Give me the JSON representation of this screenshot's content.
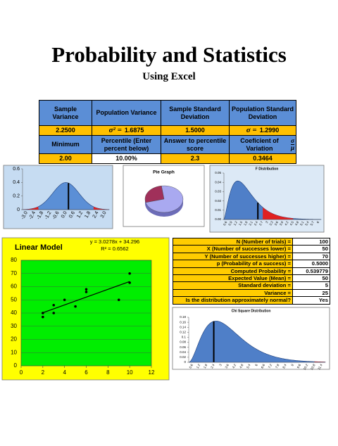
{
  "header": {
    "title": "Probability and Statistics",
    "subtitle": "Using Excel"
  },
  "summary_table": {
    "rows": [
      [
        "Sample Variance",
        "Population Variance",
        "Sample Standard Deviation",
        "Population Standard Deviation"
      ],
      [
        "2.2500",
        {
          "prefix": "σ² =",
          "value": "1.6875"
        },
        "1.5000",
        {
          "prefix": "σ =",
          "value": "1.2990"
        }
      ],
      [
        "Minimum",
        "Percentile (Enter percent below)",
        "Answer to percentile score",
        {
          "text": "Coeficient of Variation",
          "numerator": "σ",
          "denominator": "μ"
        }
      ],
      [
        "2.00",
        "10.00%",
        "2.3",
        "0.3464"
      ]
    ]
  },
  "stats_table": {
    "rows": [
      [
        "N (Number of trials) =",
        "100"
      ],
      [
        "X (Number of successes lower) =",
        "50"
      ],
      [
        "Y (Number of successes higher) =",
        "70"
      ],
      [
        "p (Probability of a success) =",
        "0.5000"
      ],
      [
        "Computed Probability =",
        "0.539779"
      ],
      [
        "Expected Value (Mean) =",
        "50"
      ],
      [
        "Standard deviation =",
        "5"
      ],
      [
        "Variance =",
        "25"
      ],
      [
        "Is the distribution approximately normal?",
        "Yes"
      ]
    ]
  },
  "chart_data": [
    {
      "type": "density",
      "distribution": "normal",
      "categories": [
        "-3.0",
        "-2.4",
        "-1.8",
        "-1.2",
        "-0.6",
        "0.0",
        "0.6",
        "1.2",
        "1.8",
        "2.4",
        "3.0"
      ],
      "ylim": [
        0,
        0.6
      ],
      "yticks": [
        0,
        0.2,
        0.4,
        0.6
      ],
      "color": "#5b8fd6"
    },
    {
      "type": "pie",
      "title": "Pie Graph",
      "values": [
        27,
        73
      ],
      "colors": [
        "#a0305a",
        "#a9a9f0"
      ]
    },
    {
      "type": "density",
      "distribution": "f",
      "title": "F Distribution",
      "categories": [
        "0.6",
        "0.9",
        "1.2",
        "1.5",
        "1.8",
        "2.1",
        "2.4",
        "2.7",
        "3",
        "3.3",
        "3.6",
        "3.9",
        "4.2",
        "4.5",
        "4.8",
        "5.1",
        "5.4",
        "5.7",
        "6"
      ],
      "ylim": [
        0,
        0.05
      ],
      "yticks": [
        {
          "value": 0,
          "label": "0.00"
        },
        0.01,
        0.02,
        0.03,
        0.04,
        0.05
      ],
      "color": "#4f7fc8"
    },
    {
      "type": "scatter",
      "title": "Linear Model",
      "annotations": [
        "y = 3.0278x + 34.296",
        "R² = 0.6562"
      ],
      "x": [
        2,
        2,
        3,
        3,
        4,
        5,
        6,
        6,
        9,
        10,
        10
      ],
      "values": [
        37,
        40,
        46,
        40,
        50,
        45,
        56,
        58,
        50,
        63,
        70
      ],
      "xlim": [
        0,
        12
      ],
      "ylim": [
        0,
        80
      ],
      "xticks": [
        0,
        2,
        4,
        6,
        8,
        10,
        12
      ],
      "yticks": [
        0,
        10,
        20,
        30,
        40,
        50,
        60,
        70,
        80
      ],
      "color": "#000000"
    },
    {
      "type": "density",
      "distribution": "chi-square",
      "title": "Chi Square Distribution",
      "categories": [
        "0.6",
        "1.2",
        "1.8",
        "2.4",
        "3",
        "3.6",
        "4.2",
        "4.8",
        "5.4",
        "6",
        "6.6",
        "7.2",
        "7.8",
        "8.4",
        "9",
        "9.6",
        "10.2",
        "10.8",
        "11.4"
      ],
      "ylim": [
        0,
        0.18
      ],
      "yticks": [
        0,
        0.02,
        0.04,
        0.06,
        0.08,
        0.1,
        0.12,
        0.14,
        0.16,
        0.18
      ],
      "color": "#4f7fc8"
    }
  ]
}
